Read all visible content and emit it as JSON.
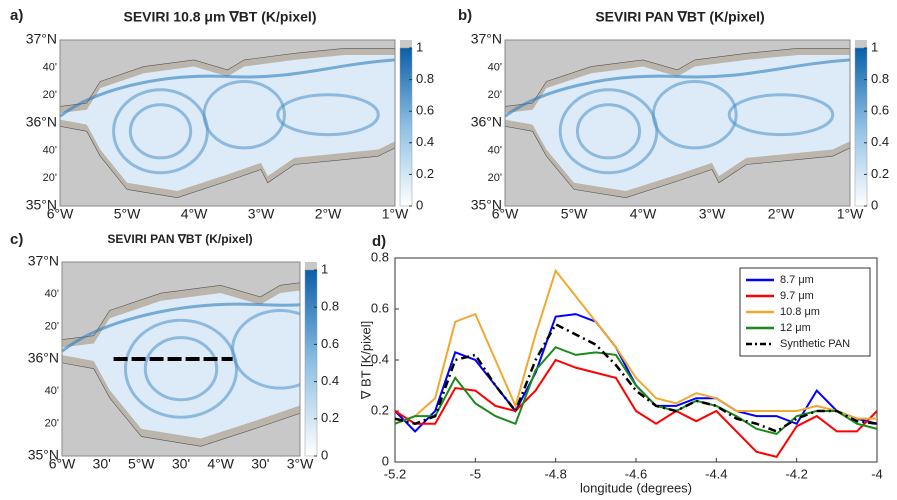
{
  "chart_data": [
    {
      "type": "map",
      "panel": "a)",
      "title": "SEVIRI 10.8 μm ∇BT (K/pixel)",
      "xlabels": [
        "6°W",
        "5°W",
        "4°W",
        "3°W",
        "2°W",
        "1°W"
      ],
      "ylabels": [
        "37°N",
        "40'",
        "20'",
        "36°N",
        "40'",
        "20'",
        "35°N"
      ],
      "clim": [
        0,
        1
      ],
      "cticks": [
        0,
        0.2,
        0.4,
        0.6,
        0.8,
        1
      ]
    },
    {
      "type": "map",
      "panel": "b)",
      "title": "SEVIRI PAN ∇BT (K/pixel)",
      "xlabels": [
        "6°W",
        "5°W",
        "4°W",
        "3°W",
        "2°W",
        "1°W"
      ],
      "ylabels": [
        "37°N",
        "40'",
        "20'",
        "36°N",
        "40'",
        "20'",
        "35°N"
      ],
      "clim": [
        0,
        1
      ],
      "cticks": [
        0,
        0.2,
        0.4,
        0.6,
        0.8,
        1
      ]
    },
    {
      "type": "map",
      "panel": "c)",
      "title": "SEVIRI PAN ∇BT (K/pixel)",
      "xlabels": [
        "6°W",
        "30'",
        "5°W",
        "30'",
        "4°W",
        "30'",
        "3°W"
      ],
      "ylabels": [
        "37°N",
        "40'",
        "20'",
        "36°N",
        "40'",
        "20'",
        "35°N"
      ],
      "clim": [
        0,
        1
      ],
      "cticks": [
        0,
        0.2,
        0.4,
        0.6,
        0.8,
        1
      ]
    },
    {
      "type": "line",
      "panel": "d)",
      "xlabel": "longitude (degrees)",
      "ylabel": "∇ BT [K/pixel]",
      "x": [
        -5.2,
        -5.15,
        -5.1,
        -5.05,
        -5.0,
        -4.95,
        -4.9,
        -4.85,
        -4.8,
        -4.75,
        -4.7,
        -4.65,
        -4.6,
        -4.55,
        -4.5,
        -4.45,
        -4.4,
        -4.35,
        -4.3,
        -4.25,
        -4.2,
        -4.15,
        -4.1,
        -4.05,
        -4.0
      ],
      "xlim": [
        -5.2,
        -4
      ],
      "ylim": [
        0,
        0.8
      ],
      "xticks": [
        -5.2,
        -5,
        -4.8,
        -4.6,
        -4.4,
        -4.2,
        -4
      ],
      "yticks": [
        0,
        0.2,
        0.4,
        0.6,
        0.8
      ],
      "legend": "upper right",
      "series": [
        {
          "name": "8.7 μm",
          "color": "#0000ff",
          "values": [
            0.2,
            0.12,
            0.2,
            0.43,
            0.4,
            0.3,
            0.2,
            0.35,
            0.57,
            0.58,
            0.55,
            0.45,
            0.3,
            0.22,
            0.22,
            0.25,
            0.25,
            0.2,
            0.18,
            0.18,
            0.15,
            0.28,
            0.2,
            0.17,
            0.15
          ]
        },
        {
          "name": "9.7 μm",
          "color": "#ff0000",
          "values": [
            0.2,
            0.15,
            0.15,
            0.29,
            0.28,
            0.22,
            0.2,
            0.28,
            0.4,
            0.37,
            0.35,
            0.33,
            0.2,
            0.15,
            0.2,
            0.16,
            0.2,
            0.12,
            0.04,
            0.02,
            0.14,
            0.18,
            0.12,
            0.12,
            0.2
          ]
        },
        {
          "name": "10.8 μm",
          "color": "#f0a830",
          "values": [
            0.15,
            0.18,
            0.25,
            0.55,
            0.58,
            0.4,
            0.22,
            0.5,
            0.75,
            0.65,
            0.55,
            0.45,
            0.33,
            0.25,
            0.23,
            0.27,
            0.25,
            0.2,
            0.2,
            0.2,
            0.2,
            0.22,
            0.2,
            0.17,
            0.17
          ]
        },
        {
          "name": "12 μm",
          "color": "#1a8a1a",
          "values": [
            0.15,
            0.18,
            0.18,
            0.33,
            0.23,
            0.18,
            0.15,
            0.36,
            0.45,
            0.42,
            0.43,
            0.42,
            0.3,
            0.22,
            0.2,
            0.24,
            0.22,
            0.18,
            0.13,
            0.11,
            0.18,
            0.2,
            0.2,
            0.15,
            0.13
          ]
        },
        {
          "name": "Synthetic PAN",
          "color": "#000000",
          "dashed": true,
          "values": [
            0.17,
            0.15,
            0.18,
            0.4,
            0.42,
            0.3,
            0.2,
            0.4,
            0.54,
            0.5,
            0.46,
            0.38,
            0.28,
            0.22,
            0.2,
            0.24,
            0.22,
            0.17,
            0.15,
            0.12,
            0.17,
            0.2,
            0.2,
            0.16,
            0.15
          ]
        }
      ]
    }
  ]
}
